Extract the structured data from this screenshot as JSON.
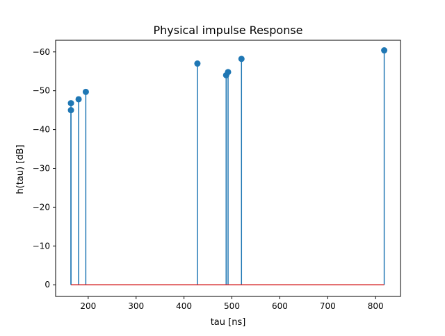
{
  "chart_data": {
    "type": "stem",
    "title": "Physical impulse Response",
    "xlabel": "tau [ns]",
    "ylabel": "h(tau) [dB]",
    "xlim": [
      132,
      852
    ],
    "ylim": [
      3,
      -63
    ],
    "y_axis_inverted": true,
    "x_ticks": [
      200,
      300,
      400,
      500,
      600,
      700,
      800
    ],
    "x_tick_labels": [
      "200",
      "300",
      "400",
      "500",
      "600",
      "700",
      "800"
    ],
    "y_ticks": [
      0,
      -10,
      -20,
      -30,
      -40,
      -50,
      -60
    ],
    "y_tick_labels": [
      "0",
      "−10",
      "−20",
      "−30",
      "−40",
      "−50",
      "−60"
    ],
    "baseline": 0,
    "grid": false,
    "colors": {
      "stem": "#1f77b4",
      "marker": "#1f77b4",
      "baseline": "#d62728"
    },
    "series": [
      {
        "x": [
          164,
          164,
          180,
          195,
          428,
          488,
          492,
          520,
          818
        ],
        "values": [
          -45.0,
          -46.8,
          -47.8,
          -49.7,
          -57.0,
          -54.0,
          -54.8,
          -58.2,
          -60.4
        ]
      }
    ]
  }
}
